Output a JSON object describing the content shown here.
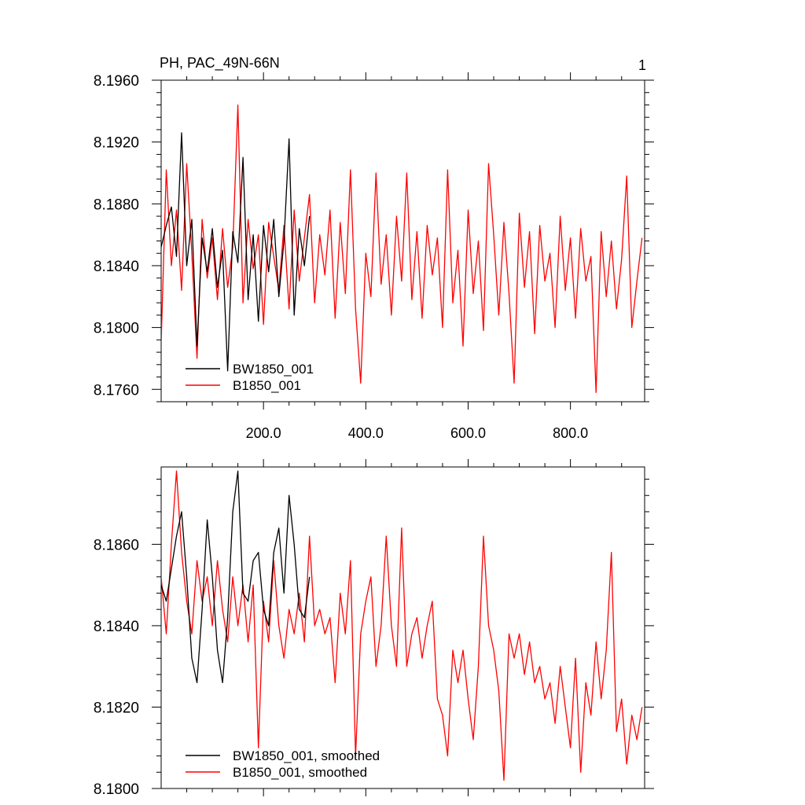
{
  "figure": {
    "title_left": "PH, PAC_49N-66N",
    "title_right": "1"
  },
  "colors": {
    "bw": "#000000",
    "b": "#ff0000",
    "axis": "#000000"
  },
  "chart_data": [
    {
      "type": "line",
      "title": "PH, PAC_49N-66N",
      "xlim": [
        0,
        945
      ],
      "ylim": [
        8.1752,
        8.196
      ],
      "x_ticks": [
        200,
        400,
        600,
        800
      ],
      "x_tick_labels": [
        "200.0",
        "400.0",
        "600.0",
        "800.0"
      ],
      "y_ticks": [
        8.176,
        8.18,
        8.184,
        8.188,
        8.192,
        8.196
      ],
      "y_tick_labels": [
        "8.1760",
        "8.1800",
        "8.1840",
        "8.1880",
        "8.1920",
        "8.1960"
      ],
      "legend_position": "bottom-left",
      "series": [
        {
          "name": "BW1850_001",
          "color": "#000000",
          "x": [
            0,
            10,
            20,
            30,
            40,
            50,
            60,
            70,
            80,
            90,
            100,
            110,
            120,
            130,
            140,
            150,
            160,
            170,
            180,
            190,
            200,
            210,
            220,
            230,
            240,
            250,
            260,
            270,
            280,
            290
          ],
          "y": [
            8.1852,
            8.1866,
            8.1878,
            8.1846,
            8.1926,
            8.184,
            8.187,
            8.1788,
            8.1858,
            8.1836,
            8.1864,
            8.1826,
            8.185,
            8.1772,
            8.1862,
            8.1842,
            8.191,
            8.1818,
            8.186,
            8.1804,
            8.1866,
            8.1836,
            8.187,
            8.182,
            8.1856,
            8.1922,
            8.1808,
            8.1864,
            8.184,
            8.1872
          ]
        },
        {
          "name": "B1850_001",
          "color": "#ff0000",
          "x": [
            0,
            10,
            20,
            30,
            40,
            50,
            60,
            70,
            80,
            90,
            100,
            110,
            120,
            130,
            140,
            150,
            160,
            170,
            180,
            190,
            200,
            210,
            220,
            230,
            240,
            250,
            260,
            270,
            280,
            290,
            300,
            310,
            320,
            330,
            340,
            350,
            360,
            370,
            380,
            390,
            400,
            410,
            420,
            430,
            440,
            450,
            460,
            470,
            480,
            490,
            500,
            510,
            520,
            530,
            540,
            550,
            560,
            570,
            580,
            590,
            600,
            610,
            620,
            630,
            640,
            650,
            660,
            670,
            680,
            690,
            700,
            710,
            720,
            730,
            740,
            750,
            760,
            770,
            780,
            790,
            800,
            810,
            820,
            830,
            840,
            850,
            860,
            870,
            880,
            890,
            900,
            910,
            920,
            930,
            940
          ],
          "y": [
            8.179,
            8.1902,
            8.184,
            8.1876,
            8.1824,
            8.1906,
            8.1848,
            8.178,
            8.187,
            8.1832,
            8.1858,
            8.1818,
            8.1864,
            8.1826,
            8.1852,
            8.1944,
            8.1816,
            8.187,
            8.1838,
            8.186,
            8.1802,
            8.1868,
            8.1846,
            8.1824,
            8.1866,
            8.1812,
            8.1876,
            8.183,
            8.1858,
            8.1886,
            8.1816,
            8.186,
            8.1834,
            8.1876,
            8.1806,
            8.1868,
            8.1822,
            8.1902,
            8.1812,
            8.1764,
            8.1848,
            8.182,
            8.19,
            8.1828,
            8.186,
            8.1808,
            8.1872,
            8.183,
            8.19,
            8.1818,
            8.1862,
            8.1806,
            8.1866,
            8.1834,
            8.1858,
            8.18,
            8.1902,
            8.1816,
            8.185,
            8.1788,
            8.1876,
            8.1822,
            8.1856,
            8.1798,
            8.1906,
            8.186,
            8.1808,
            8.1868,
            8.1822,
            8.1764,
            8.1874,
            8.1826,
            8.1862,
            8.1796,
            8.1866,
            8.183,
            8.1848,
            8.18,
            8.1872,
            8.1824,
            8.1858,
            8.1806,
            8.1864,
            8.183,
            8.1846,
            8.1758,
            8.1862,
            8.182,
            8.1856,
            8.1812,
            8.1844,
            8.1898,
            8.18,
            8.183,
            8.1858
          ]
        }
      ]
    },
    {
      "type": "line",
      "xlim": [
        0,
        945
      ],
      "ylim": [
        8.18,
        8.1879
      ],
      "x_ticks": [
        200,
        400,
        600,
        800
      ],
      "y_ticks": [
        8.18,
        8.182,
        8.184,
        8.186
      ],
      "y_tick_labels": [
        "8.1800",
        "8.1820",
        "8.1840",
        "8.1860"
      ],
      "legend_position": "bottom-left",
      "series": [
        {
          "name": "BW1850_001, smoothed",
          "color": "#000000",
          "x": [
            0,
            10,
            20,
            30,
            40,
            50,
            60,
            70,
            80,
            90,
            100,
            110,
            120,
            130,
            140,
            150,
            160,
            170,
            180,
            190,
            200,
            210,
            220,
            230,
            240,
            250,
            260,
            270,
            280,
            290
          ],
          "y": [
            8.185,
            8.1846,
            8.1854,
            8.1862,
            8.1868,
            8.1852,
            8.1832,
            8.1826,
            8.1844,
            8.1866,
            8.1852,
            8.1834,
            8.1826,
            8.1842,
            8.1868,
            8.1878,
            8.1848,
            8.1846,
            8.1856,
            8.1858,
            8.1844,
            8.184,
            8.1858,
            8.1864,
            8.1848,
            8.1872,
            8.186,
            8.1844,
            8.1842,
            8.1852
          ]
        },
        {
          "name": "B1850_001, smoothed",
          "color": "#ff0000",
          "x": [
            0,
            10,
            20,
            30,
            40,
            50,
            60,
            70,
            80,
            90,
            100,
            110,
            120,
            130,
            140,
            150,
            160,
            170,
            180,
            190,
            200,
            210,
            220,
            230,
            240,
            250,
            260,
            270,
            280,
            290,
            300,
            310,
            320,
            330,
            340,
            350,
            360,
            370,
            380,
            390,
            400,
            410,
            420,
            430,
            440,
            450,
            460,
            470,
            480,
            490,
            500,
            510,
            520,
            530,
            540,
            550,
            560,
            570,
            580,
            590,
            600,
            610,
            620,
            630,
            640,
            650,
            660,
            670,
            680,
            690,
            700,
            710,
            720,
            730,
            740,
            750,
            760,
            770,
            780,
            790,
            800,
            810,
            820,
            830,
            840,
            850,
            860,
            870,
            880,
            890,
            900,
            910,
            920,
            930,
            940
          ],
          "y": [
            8.1852,
            8.1838,
            8.186,
            8.1878,
            8.1858,
            8.1846,
            8.1838,
            8.1856,
            8.1846,
            8.1852,
            8.184,
            8.1856,
            8.1844,
            8.1836,
            8.1852,
            8.184,
            8.185,
            8.1836,
            8.185,
            8.181,
            8.1846,
            8.1836,
            8.1856,
            8.184,
            8.1832,
            8.1844,
            8.1838,
            8.1848,
            8.1836,
            8.1862,
            8.184,
            8.1844,
            8.1838,
            8.1842,
            8.1826,
            8.1848,
            8.1838,
            8.1856,
            8.1808,
            8.1838,
            8.1846,
            8.1852,
            8.183,
            8.184,
            8.1862,
            8.184,
            8.183,
            8.1864,
            8.183,
            8.1838,
            8.1842,
            8.1832,
            8.184,
            8.1846,
            8.1822,
            8.1818,
            8.1808,
            8.1834,
            8.1826,
            8.1834,
            8.1822,
            8.1812,
            8.183,
            8.1862,
            8.184,
            8.1834,
            8.1824,
            8.1802,
            8.1838,
            8.1832,
            8.1838,
            8.1828,
            8.1836,
            8.1826,
            8.183,
            8.1822,
            8.1826,
            8.1816,
            8.183,
            8.182,
            8.181,
            8.1832,
            8.1804,
            8.1826,
            8.1818,
            8.1836,
            8.1822,
            8.1834,
            8.1858,
            8.1814,
            8.1822,
            8.1806,
            8.1818,
            8.1812,
            8.182
          ]
        }
      ]
    }
  ]
}
